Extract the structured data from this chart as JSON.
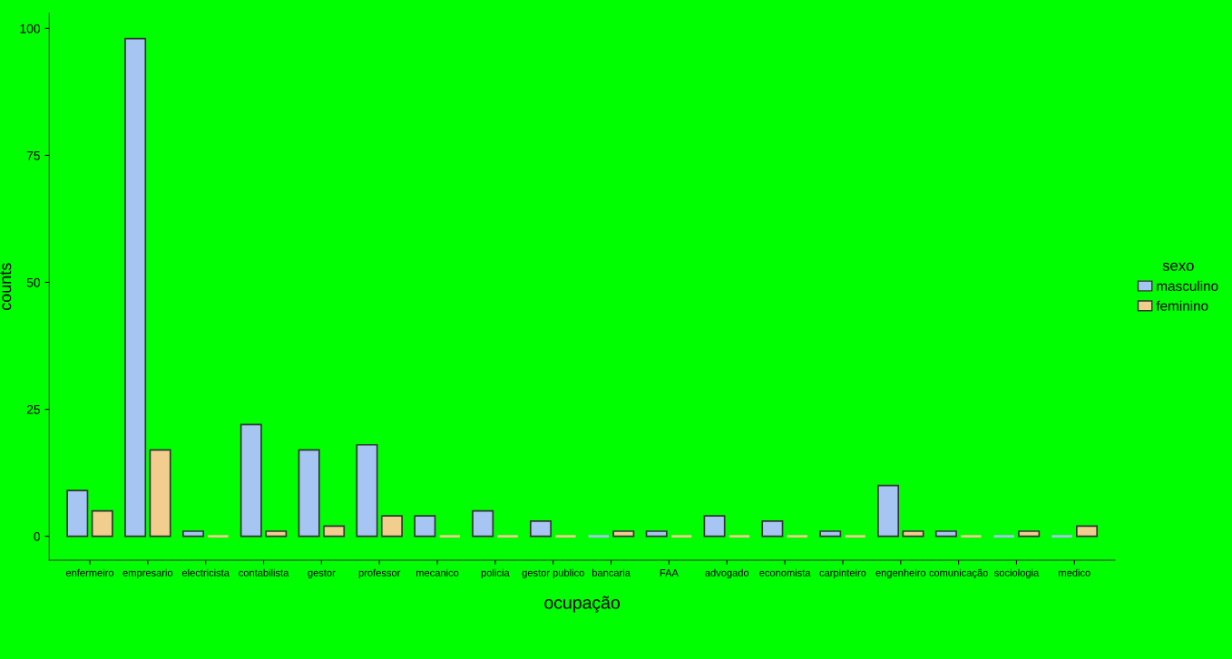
{
  "chart_data": {
    "type": "bar",
    "xlabel": "ocupação",
    "ylabel": "counts",
    "legend_title": "sexo",
    "categories": [
      "enfermeiro",
      "empresario",
      "electricista",
      "contabilista",
      "gestor",
      "professor",
      "mecanico",
      "policia",
      "gestor publico",
      "bancaria",
      "FAA",
      "advogado",
      "economista",
      "carpinteiro",
      "engenheiro",
      "comunicação",
      "sociologia",
      "medico"
    ],
    "series": [
      {
        "name": "masculino",
        "color": "#a7c5f2",
        "values": [
          9,
          98,
          1,
          22,
          17,
          18,
          4,
          5,
          3,
          0,
          1,
          4,
          3,
          1,
          10,
          1,
          0,
          0
        ]
      },
      {
        "name": "feminino",
        "color": "#f1cd8e",
        "values": [
          5,
          17,
          0,
          1,
          2,
          4,
          0,
          0,
          0,
          1,
          0,
          0,
          0,
          0,
          1,
          0,
          1,
          2
        ]
      }
    ],
    "ylim": [
      -4.7,
      103
    ],
    "yticks": [
      0,
      25,
      50,
      75,
      100
    ],
    "grid": false,
    "legend": "right"
  }
}
